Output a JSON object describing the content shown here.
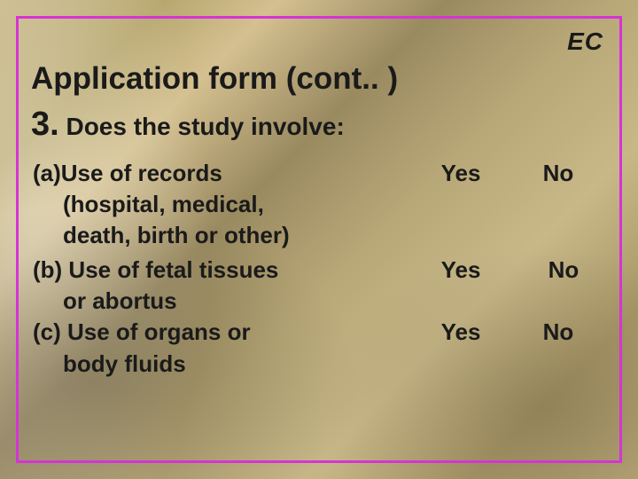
{
  "colors": {
    "border": "#d633d6",
    "text": "#1a1a1a",
    "bg_base": "#c8b888"
  },
  "typography": {
    "family": "Arial",
    "title_fontsize": 35,
    "ec_fontsize": 28,
    "body_fontsize": 26,
    "qnum_fontsize": 38
  },
  "header": {
    "corner_label": "EC",
    "title": "Application form (cont.. )"
  },
  "question": {
    "number": "3.",
    "prompt": "Does the study involve:"
  },
  "answer_labels": {
    "yes": "Yes",
    "no": "No"
  },
  "items": {
    "a": {
      "line1": "(a)Use of records",
      "line2": "(hospital, medical,",
      "line3": "death, birth or other)"
    },
    "b": {
      "line1": "(b) Use of fetal tissues",
      "line2": "or abortus"
    },
    "c": {
      "line1": "(c) Use of organs or",
      "line2": "body fluids"
    }
  }
}
